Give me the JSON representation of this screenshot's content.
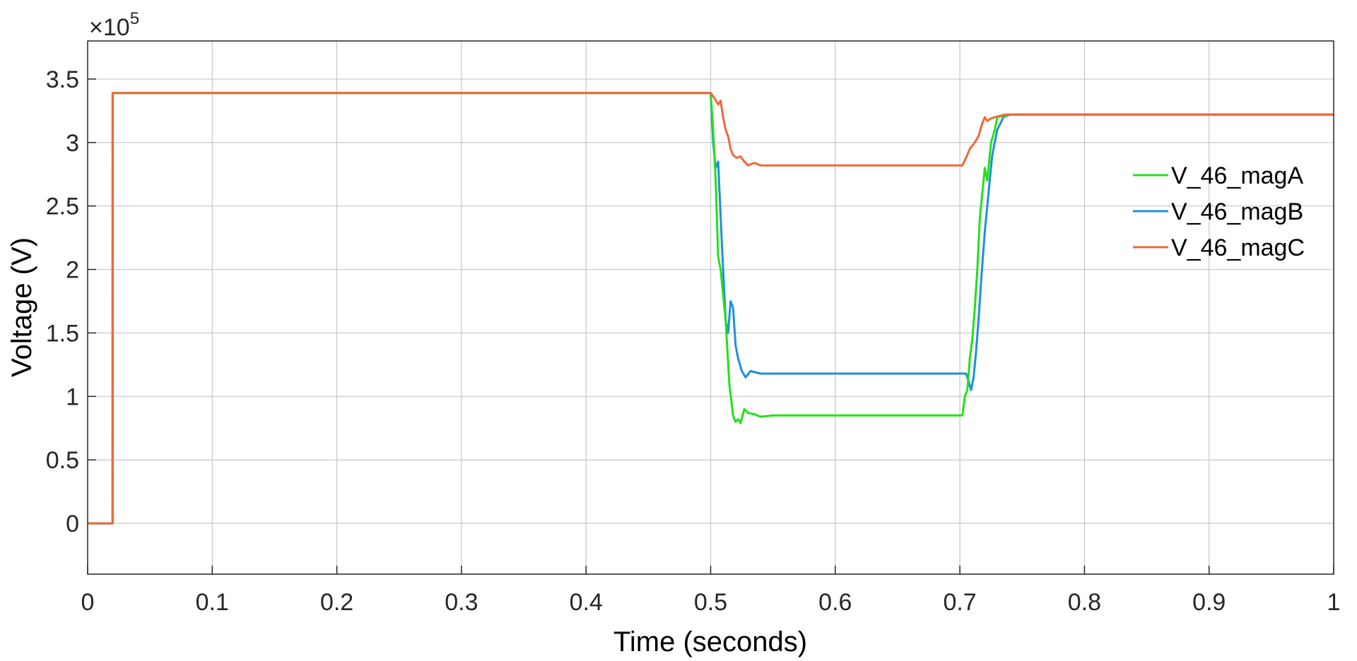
{
  "chart_data": {
    "type": "line",
    "title": "",
    "xlabel": "Time (seconds)",
    "ylabel": "Voltage (V)",
    "xlim": [
      0,
      1
    ],
    "ylim": [
      -0.4,
      3.8
    ],
    "y_exponent_label": "×10",
    "y_exponent_power": "5",
    "xticks": [
      "0",
      "0.1",
      "0.2",
      "0.3",
      "0.4",
      "0.5",
      "0.6",
      "0.7",
      "0.8",
      "0.9",
      "1"
    ],
    "yticks": [
      "0",
      "0.5",
      "1",
      "1.5",
      "2",
      "2.5",
      "3",
      "3.5"
    ],
    "grid": true,
    "legend_position": "right",
    "series": [
      {
        "name": "V_46_magA",
        "color": "#22e01c",
        "x": [
          0,
          0.02,
          0.0201,
          0.5,
          0.502,
          0.504,
          0.506,
          0.508,
          0.512,
          0.515,
          0.518,
          0.52,
          0.522,
          0.524,
          0.527,
          0.53,
          0.535,
          0.54,
          0.55,
          0.6,
          0.65,
          0.702,
          0.704,
          0.706,
          0.708,
          0.71,
          0.712,
          0.714,
          0.716,
          0.718,
          0.72,
          0.722,
          0.725,
          0.728,
          0.73,
          0.735,
          0.74,
          0.75,
          0.8,
          0.9,
          1.0
        ],
        "y": [
          0,
          0,
          3.39,
          3.39,
          3.1,
          2.7,
          2.1,
          2.0,
          1.6,
          1.1,
          0.85,
          0.8,
          0.82,
          0.79,
          0.9,
          0.87,
          0.86,
          0.84,
          0.85,
          0.85,
          0.85,
          0.85,
          1.0,
          1.05,
          1.3,
          1.45,
          1.7,
          2.0,
          2.4,
          2.6,
          2.8,
          2.7,
          3.0,
          3.1,
          3.2,
          3.21,
          3.22,
          3.22,
          3.22,
          3.22,
          3.22
        ]
      },
      {
        "name": "V_46_magB",
        "color": "#1f8fdc",
        "x": [
          0,
          0.02,
          0.0201,
          0.5,
          0.502,
          0.504,
          0.506,
          0.509,
          0.512,
          0.514,
          0.516,
          0.518,
          0.52,
          0.522,
          0.525,
          0.528,
          0.532,
          0.54,
          0.55,
          0.6,
          0.65,
          0.705,
          0.707,
          0.709,
          0.711,
          0.713,
          0.715,
          0.717,
          0.72,
          0.723,
          0.726,
          0.73,
          0.735,
          0.74,
          0.75,
          0.8,
          0.9,
          1.0
        ],
        "y": [
          0,
          0,
          3.39,
          3.39,
          3.0,
          2.8,
          2.85,
          2.2,
          1.6,
          1.5,
          1.75,
          1.7,
          1.4,
          1.3,
          1.2,
          1.15,
          1.2,
          1.18,
          1.18,
          1.18,
          1.18,
          1.18,
          1.12,
          1.05,
          1.15,
          1.35,
          1.6,
          1.9,
          2.3,
          2.6,
          2.9,
          3.1,
          3.2,
          3.22,
          3.22,
          3.22,
          3.22,
          3.22
        ]
      },
      {
        "name": "V_46_magC",
        "color": "#f0673a",
        "x": [
          0,
          0.02,
          0.0201,
          0.5,
          0.503,
          0.506,
          0.508,
          0.51,
          0.512,
          0.514,
          0.516,
          0.518,
          0.521,
          0.524,
          0.527,
          0.53,
          0.535,
          0.54,
          0.55,
          0.6,
          0.65,
          0.7,
          0.702,
          0.705,
          0.708,
          0.712,
          0.715,
          0.718,
          0.72,
          0.722,
          0.725,
          0.728,
          0.732,
          0.736,
          0.74,
          0.75,
          0.8,
          0.9,
          1.0
        ],
        "y": [
          0,
          0,
          3.39,
          3.39,
          3.35,
          3.3,
          3.33,
          3.2,
          3.1,
          3.05,
          2.95,
          2.9,
          2.88,
          2.89,
          2.85,
          2.82,
          2.84,
          2.82,
          2.82,
          2.82,
          2.82,
          2.82,
          2.82,
          2.88,
          2.95,
          3.0,
          3.05,
          3.15,
          3.2,
          3.17,
          3.19,
          3.2,
          3.21,
          3.22,
          3.22,
          3.22,
          3.22,
          3.22,
          3.22
        ]
      }
    ]
  }
}
